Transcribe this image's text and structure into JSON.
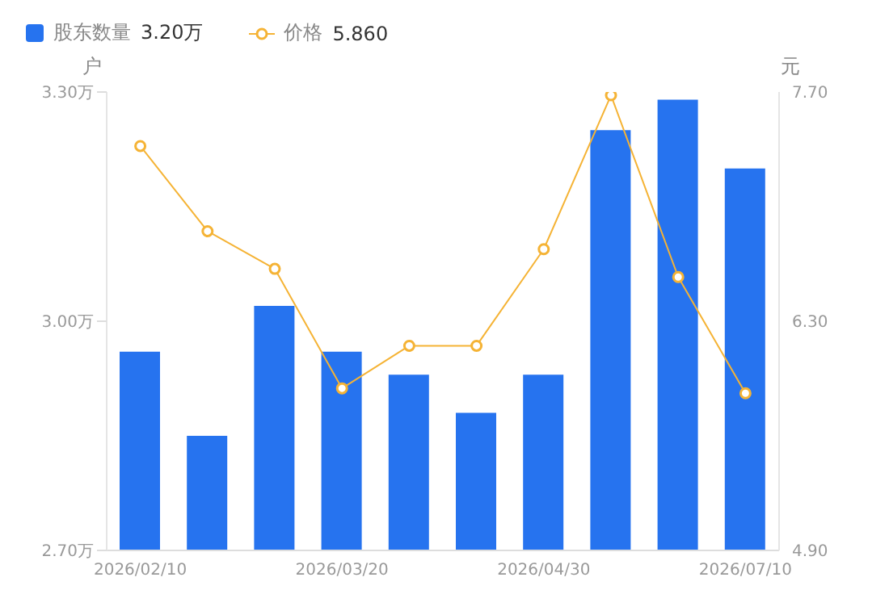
{
  "chart_data": {
    "type": "bar",
    "categories": [
      "2026/02/10",
      null,
      null,
      "2026/03/20",
      null,
      null,
      "2026/04/30",
      null,
      null,
      "2026/07/10"
    ],
    "series": [
      {
        "name": "股东数量",
        "color": "#2673ef",
        "values": [
          2.96,
          2.85,
          3.02,
          2.96,
          2.93,
          2.88,
          2.93,
          3.25,
          3.29,
          3.2
        ]
      },
      {
        "name": "价格",
        "type": "line",
        "axis": "y2",
        "color": "#f5b335",
        "values": [
          7.37,
          6.85,
          6.62,
          5.89,
          6.15,
          6.15,
          6.74,
          7.68,
          6.57,
          5.86
        ]
      }
    ],
    "annotations": [
      "3.20万",
      "5.860"
    ],
    "ylabel": "户",
    "y2label": "元",
    "ylim": [
      2.7,
      3.3
    ],
    "yticks": [
      {
        "value": 2.7,
        "label": "2.70万"
      },
      {
        "value": 3.0,
        "label": "3.00万"
      },
      {
        "value": 3.3,
        "label": "3.30万"
      }
    ],
    "y2lim": [
      4.9,
      7.7
    ],
    "y2ticks": [
      {
        "value": 4.9,
        "label": "4.90"
      },
      {
        "value": 6.3,
        "label": "6.30"
      },
      {
        "value": 7.7,
        "label": "7.70"
      }
    ],
    "legend": "top left",
    "grid": false,
    "marker": "circle",
    "line_style": "solid"
  }
}
